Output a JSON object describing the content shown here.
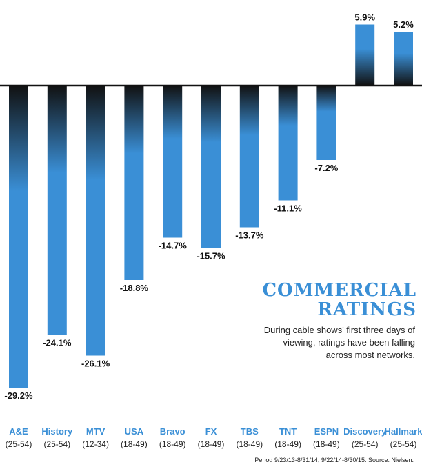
{
  "chart_data": {
    "type": "bar",
    "title_line1": "COMMERCIAL",
    "title_line2": "RATINGS",
    "subtitle": "During cable shows' first three days of viewing, ratings have been falling across most networks.",
    "source": "Period 9/23/13-8/31/14, 9/22/14-8/30/15. Source: Nielsen.",
    "categories": [
      "A&E",
      "History",
      "MTV",
      "USA",
      "Bravo",
      "FX",
      "TBS",
      "TNT",
      "ESPN",
      "Discovery",
      "Hallmark"
    ],
    "demos": [
      "(25-54)",
      "(25-54)",
      "(12-34)",
      "(18-49)",
      "(18-49)",
      "(18-49)",
      "(18-49)",
      "(18-49)",
      "(18-49)",
      "(25-54)",
      "(25-54)"
    ],
    "values": [
      -29.2,
      -24.1,
      -26.1,
      -18.8,
      -14.7,
      -15.7,
      -13.7,
      -11.1,
      -7.2,
      5.9,
      5.2
    ],
    "value_labels": [
      "-29.2%",
      "-24.1%",
      "-26.1%",
      "-18.8%",
      "-14.7%",
      "-15.7%",
      "-13.7%",
      "-11.1%",
      "-7.2%",
      "5.9%",
      "5.2%"
    ],
    "unit": "%",
    "colors": {
      "bar": "#3a8fd6",
      "fade": "#111111",
      "axis": "#111111"
    }
  }
}
